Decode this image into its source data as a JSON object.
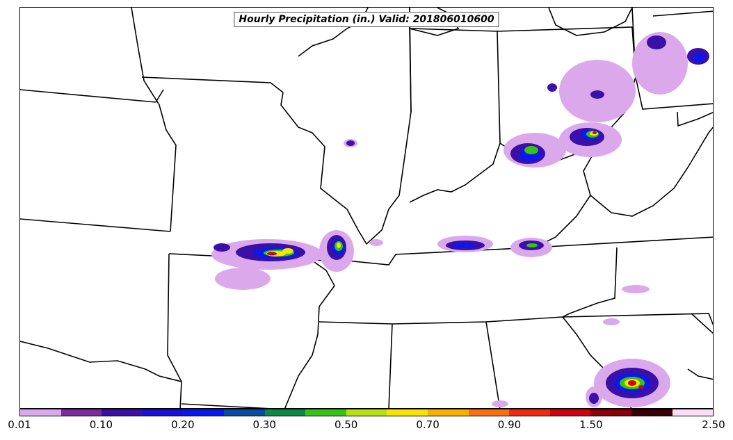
{
  "map": {
    "title": "Hourly Precipitation (in.) Valid: 201806010600"
  },
  "colorbar": {
    "colors": [
      "#dca8ec",
      "#7a2d9a",
      "#3a10a8",
      "#1a10d8",
      "#0a18f0",
      "#0a4aa0",
      "#0a8a44",
      "#35c415",
      "#b8e010",
      "#f8e400",
      "#f8b000",
      "#f87010",
      "#f02a10",
      "#d00010",
      "#8a0008",
      "#380004",
      "#fcdcf4"
    ],
    "labels": [
      "0.01",
      "0.10",
      "0.20",
      "0.30",
      "0.50",
      "0.70",
      "0.90",
      "1.50",
      "2.50"
    ]
  },
  "legend_unit": "in."
}
